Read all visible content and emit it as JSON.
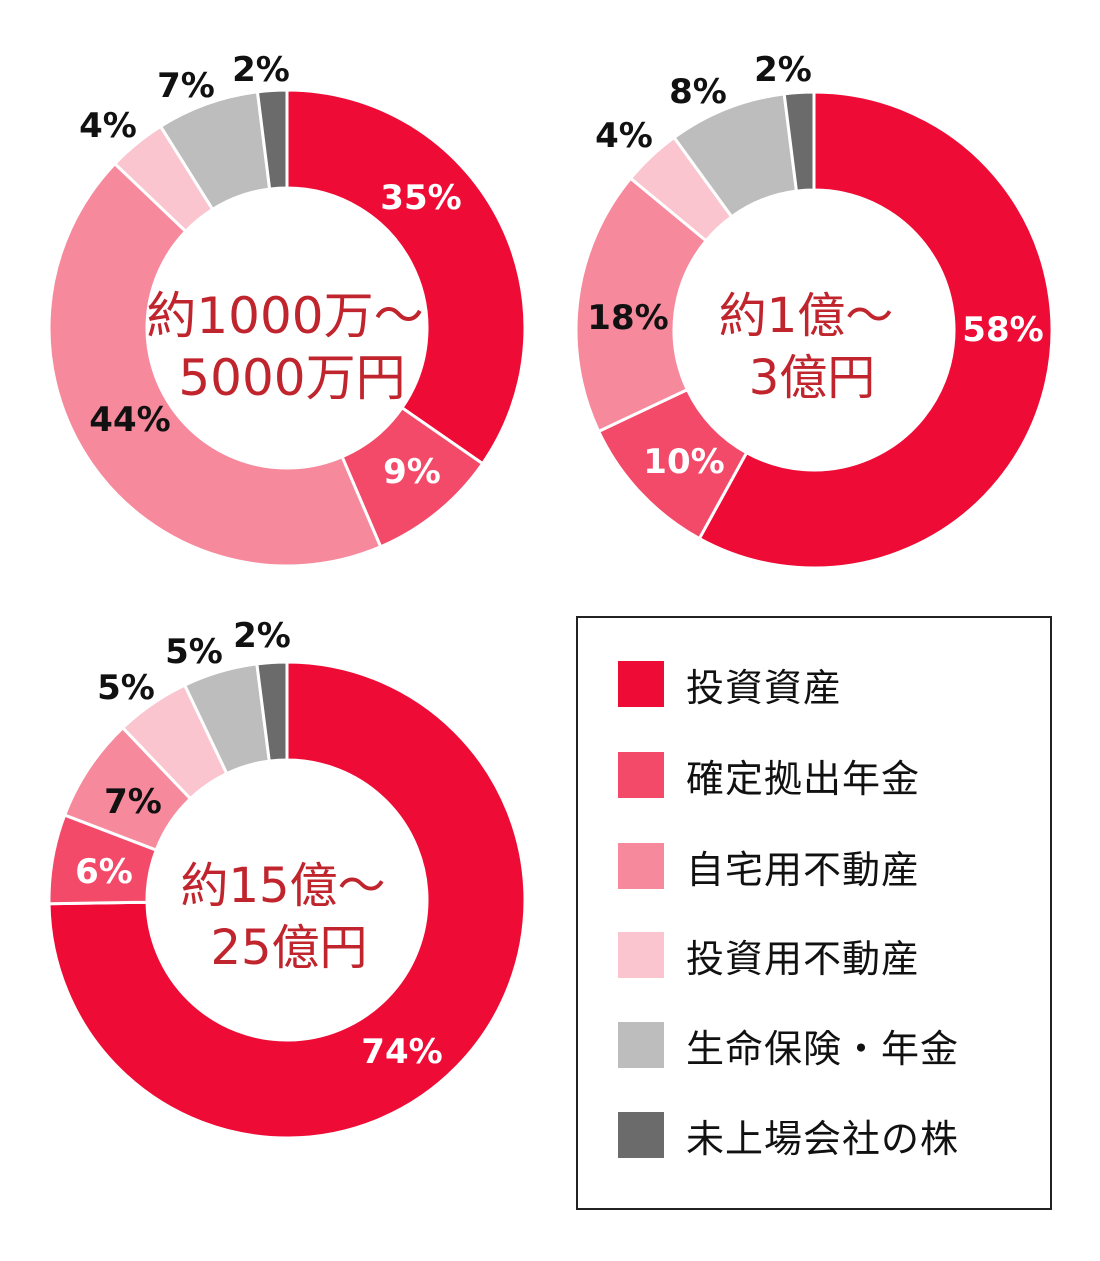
{
  "chart_data": [
    {
      "type": "donut",
      "center_label": [
        "約1000万〜",
        "5000万円"
      ],
      "categories": [
        "投資資産",
        "確定拠出年金",
        "自宅用不動産",
        "投資用不動産",
        "生命保険・年金",
        "未上場会社の株"
      ],
      "values": [
        35,
        9,
        44,
        4,
        7,
        2
      ],
      "labels": [
        "35%",
        "9%",
        "44%",
        "4%",
        "7%",
        "2%"
      ]
    },
    {
      "type": "donut",
      "center_label": [
        "約1億〜",
        "3億円"
      ],
      "categories": [
        "投資資産",
        "確定拠出年金",
        "自宅用不動産",
        "投資用不動産",
        "生命保険・年金",
        "未上場会社の株"
      ],
      "values": [
        58,
        10,
        18,
        4,
        8,
        2
      ],
      "labels": [
        "58%",
        "10%",
        "18%",
        "4%",
        "8%",
        "2%"
      ]
    },
    {
      "type": "donut",
      "center_label": [
        "約15億〜",
        "25億円"
      ],
      "categories": [
        "投資資産",
        "確定拠出年金",
        "自宅用不動産",
        "投資用不動産",
        "生命保険・年金",
        "未上場会社の株"
      ],
      "values": [
        74,
        6,
        7,
        5,
        5,
        2
      ],
      "labels": [
        "74%",
        "6%",
        "7%",
        "5%",
        "5%",
        "2%"
      ]
    }
  ],
  "legend": {
    "items": [
      {
        "label": "投資資産",
        "color": "#ee0c36"
      },
      {
        "label": "確定拠出年金",
        "color": "#f34a6a"
      },
      {
        "label": "自宅用不動産",
        "color": "#f6899c"
      },
      {
        "label": "投資用不動産",
        "color": "#fac5cf"
      },
      {
        "label": "生命保険・年金",
        "color": "#bdbdbd"
      },
      {
        "label": "未上場会社の株",
        "color": "#6b6b6b"
      }
    ]
  },
  "colors": {
    "center_text": "#c0242d",
    "label_inside": "#ffffff",
    "label_outside": "#111111"
  }
}
